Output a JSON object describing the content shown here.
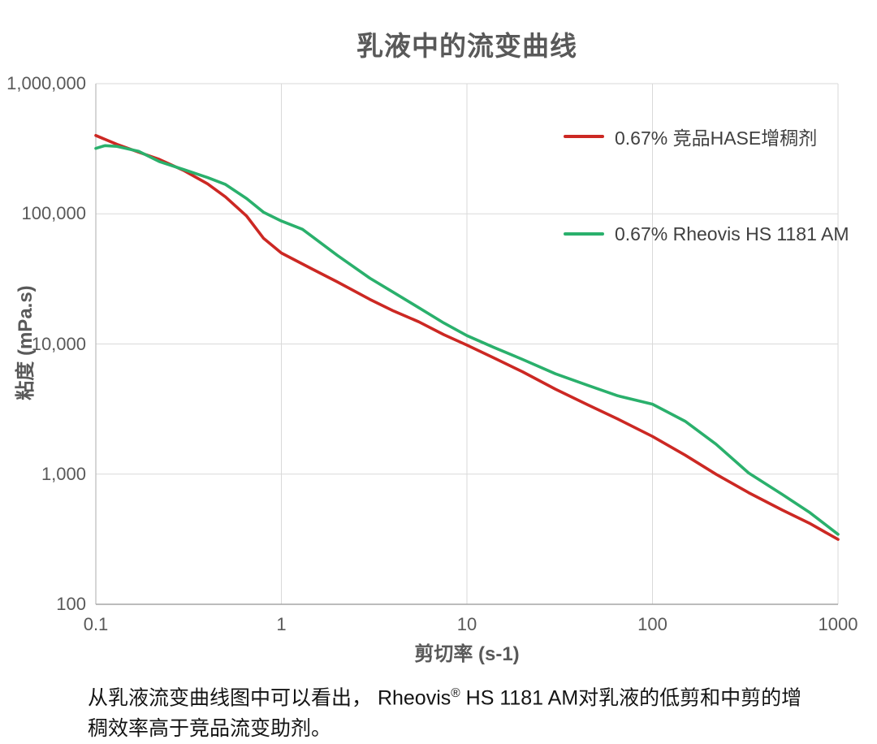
{
  "chart_data": {
    "type": "line",
    "title": "乳液中的流变曲线",
    "xlabel": "剪切率 (s-1)",
    "ylabel": "粘度 (mPa.s)",
    "x_scale": "log",
    "y_scale": "log",
    "xlim": [
      0.1,
      1000
    ],
    "ylim": [
      100,
      1000000
    ],
    "grid": true,
    "legend_position": "inside-top-right",
    "x_ticks": [
      {
        "label": "0.1",
        "value": 0.1
      },
      {
        "label": "1",
        "value": 1
      },
      {
        "label": "10",
        "value": 10
      },
      {
        "label": "100",
        "value": 100
      },
      {
        "label": "1000",
        "value": 1000
      }
    ],
    "y_ticks": [
      {
        "label": "100",
        "value": 100
      },
      {
        "label": "1,000",
        "value": 1000
      },
      {
        "label": "10,000",
        "value": 10000
      },
      {
        "label": "100,000",
        "value": 100000
      },
      {
        "label": "1,000,000",
        "value": 1000000
      }
    ],
    "series": [
      {
        "name": "0.67% 竞品HASE增稠剂",
        "color": "#cc2823",
        "x": [
          0.1,
          0.13,
          0.17,
          0.22,
          0.3,
          0.4,
          0.5,
          0.65,
          0.8,
          1,
          1.5,
          2,
          3,
          4,
          5.5,
          7.5,
          10,
          14,
          20,
          30,
          45,
          65,
          100,
          150,
          220,
          330,
          500,
          700,
          1000
        ],
        "y": [
          400000,
          342000,
          298000,
          262000,
          214000,
          170000,
          135000,
          96000,
          65000,
          50000,
          37000,
          30000,
          22000,
          18000,
          14800,
          11800,
          9800,
          7800,
          6100,
          4500,
          3400,
          2650,
          1950,
          1400,
          1000,
          720,
          530,
          420,
          315
        ]
      },
      {
        "name": "0.67% Rheovis HS 1181 AM",
        "color": "#2ab06c",
        "x": [
          0.1,
          0.112,
          0.13,
          0.17,
          0.22,
          0.3,
          0.4,
          0.5,
          0.65,
          0.8,
          1,
          1.3,
          2,
          3,
          4,
          5.5,
          7.5,
          10,
          14,
          20,
          30,
          45,
          65,
          100,
          150,
          220,
          330,
          500,
          700,
          1000
        ],
        "y": [
          318000,
          334000,
          330000,
          302000,
          252000,
          218000,
          190000,
          168000,
          131000,
          103000,
          88000,
          76000,
          48000,
          32000,
          25000,
          19000,
          14500,
          11600,
          9400,
          7600,
          5900,
          4800,
          4000,
          3450,
          2550,
          1700,
          1020,
          700,
          510,
          345
        ]
      }
    ]
  },
  "caption": {
    "before": "从乳液流变曲线图中可以看出， Rheovis",
    "sup": "®",
    "after": " HS 1181 AM对乳液的低剪和中剪的增稠效率高于竞品流变助剂。"
  }
}
